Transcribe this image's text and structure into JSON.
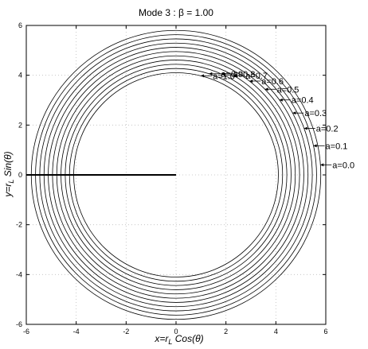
{
  "chart_data": {
    "type": "line",
    "title": "Mode 3 : β = 1.00",
    "xlabel": "x=r_L Cos(θ)",
    "ylabel": "y=r_L Sin(θ)",
    "xlim": [
      -6,
      6
    ],
    "ylim": [
      -6,
      6
    ],
    "grid": true,
    "x_ticks": [
      -6,
      -4,
      -2,
      0,
      2,
      4,
      6
    ],
    "y_ticks": [
      -6,
      -4,
      -2,
      0,
      2,
      4,
      6
    ],
    "x_tick_labels": [
      "-6",
      "-4",
      "-2",
      "0",
      "2",
      "4",
      "6"
    ],
    "y_tick_labels": [
      "-6",
      "-4",
      "-2",
      "0",
      "2",
      "4",
      "6"
    ],
    "series": [
      {
        "label": "a=0.0",
        "radius": 5.8
      },
      {
        "label": "a=0.1",
        "radius": 5.63
      },
      {
        "label": "a=0.2",
        "radius": 5.46
      },
      {
        "label": "a=0.3",
        "radius": 5.29
      },
      {
        "label": "a=0.4",
        "radius": 5.12
      },
      {
        "label": "a=0.5",
        "radius": 4.95
      },
      {
        "label": "a=0.6",
        "radius": 4.78
      },
      {
        "label": "a=0.7",
        "radius": 4.61
      },
      {
        "label": "a=0.8",
        "radius": 4.44
      },
      {
        "label": "a=0.9",
        "radius": 4.27
      },
      {
        "label": "a=1.0",
        "radius": 4.1
      }
    ],
    "annotation_angle_deg": [
      4,
      12,
      20,
      28,
      36,
      44,
      52,
      60,
      66,
      72,
      76
    ],
    "radial_line": {
      "from": [
        -6,
        0
      ],
      "to": [
        0,
        0
      ]
    }
  }
}
